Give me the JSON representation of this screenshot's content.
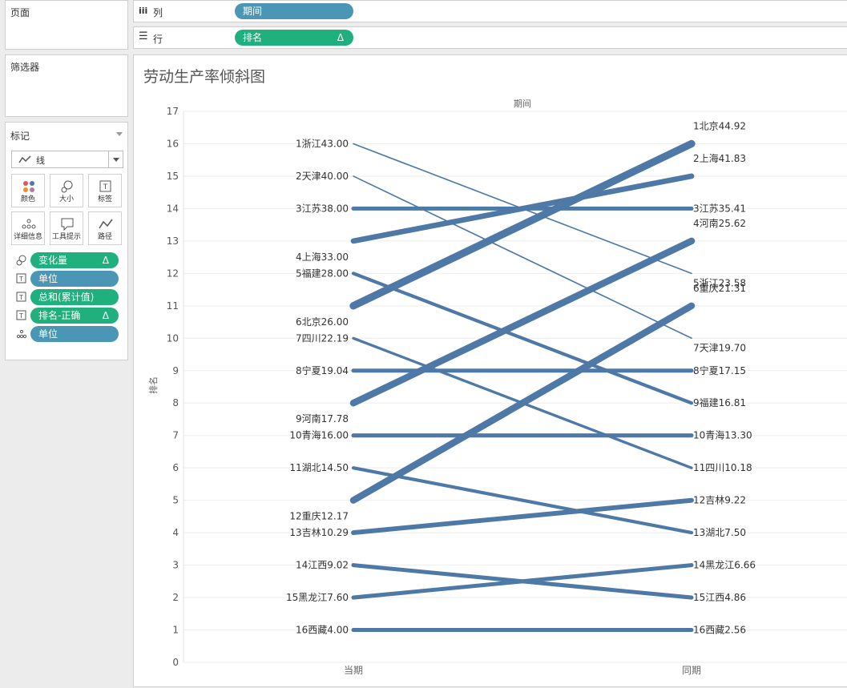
{
  "left_panel": {
    "pages_title": "页面",
    "filters_title": "筛选器",
    "marks_title": "标记",
    "mark_type": "线",
    "buttons": [
      {
        "label": "颜色",
        "icon": "color-icon"
      },
      {
        "label": "大小",
        "icon": "size-icon"
      },
      {
        "label": "标签",
        "icon": "label-icon"
      },
      {
        "label": "详细信息",
        "icon": "detail-icon"
      },
      {
        "label": "工具提示",
        "icon": "tooltip-icon"
      },
      {
        "label": "路径",
        "icon": "path-icon"
      }
    ],
    "mark_pills": [
      {
        "label": "变化量",
        "color": "green",
        "delta": "Δ",
        "icon": "size-icon"
      },
      {
        "label": "单位",
        "color": "blue",
        "delta": "",
        "icon": "text-icon"
      },
      {
        "label": "总和(累计值)",
        "color": "green",
        "delta": "",
        "icon": "text-icon"
      },
      {
        "label": "排名-正确",
        "color": "green",
        "delta": "Δ",
        "icon": "text-icon"
      },
      {
        "label": "单位",
        "color": "blue",
        "delta": "",
        "icon": "detail-icon"
      }
    ]
  },
  "shelves": {
    "columns": {
      "icon_text": "iii",
      "label": "列",
      "pill": "期间",
      "pill_delta": ""
    },
    "rows": {
      "icon_text": "☰",
      "label": "行",
      "pill": "排名",
      "pill_delta": "Δ"
    }
  },
  "colors": {
    "line": "#4e79a7",
    "green_pill": "#1fb07e",
    "blue_pill": "#4b96b4"
  },
  "view": {
    "title": "劳动生产率倾斜图"
  },
  "chart_data": {
    "type": "line",
    "title": "劳动生产率倾斜图",
    "top_header": "期间",
    "ylabel": "排名",
    "categories": [
      "当期",
      "同期"
    ],
    "yticks": [
      "0",
      "1",
      "2",
      "3",
      "4",
      "5",
      "6",
      "7",
      "8",
      "9",
      "10",
      "11",
      "12",
      "13",
      "14",
      "15",
      "16",
      "17"
    ],
    "ylim": [
      0,
      17
    ],
    "grid": true,
    "series": [
      {
        "left_label": "1浙江43.00",
        "right_label": "5浙江23.58",
        "values": [
          16,
          12
        ],
        "width_level": 1
      },
      {
        "left_label": "2天津40.00",
        "right_label": "7天津19.70",
        "values": [
          15,
          10
        ],
        "width_level": 1
      },
      {
        "left_label": "3江苏38.00",
        "right_label": "3江苏35.41",
        "values": [
          14,
          14
        ],
        "width_level": 5
      },
      {
        "left_label": "4上海33.00",
        "right_label": "2上海41.83",
        "values": [
          13,
          15
        ],
        "width_level": 7
      },
      {
        "left_label": "5福建28.00",
        "right_label": "9福建16.81",
        "values": [
          12,
          8
        ],
        "width_level": 4
      },
      {
        "left_label": "6北京26.00",
        "right_label": "1北京44.92",
        "values": [
          11,
          16
        ],
        "width_level": 10
      },
      {
        "left_label": "7四川22.19",
        "right_label": "11四川10.18",
        "values": [
          10,
          6
        ],
        "width_level": 3
      },
      {
        "left_label": "8宁夏19.04",
        "right_label": "8宁夏17.15",
        "values": [
          9,
          9
        ],
        "width_level": 5
      },
      {
        "left_label": "9河南17.78",
        "right_label": "4河南25.62",
        "values": [
          8,
          13
        ],
        "width_level": 9
      },
      {
        "left_label": "10青海16.00",
        "right_label": "10青海13.30",
        "values": [
          7,
          7
        ],
        "width_level": 5
      },
      {
        "left_label": "11湖北14.50",
        "right_label": "13湖北7.50",
        "values": [
          6,
          4
        ],
        "width_level": 4
      },
      {
        "left_label": "12重庆12.17",
        "right_label": "6重庆21.31",
        "values": [
          5,
          11
        ],
        "width_level": 9
      },
      {
        "left_label": "13吉林10.29",
        "right_label": "12吉林9.22",
        "values": [
          4,
          5
        ],
        "width_level": 6
      },
      {
        "left_label": "14江西9.02",
        "right_label": "15江西4.86",
        "values": [
          3,
          2
        ],
        "width_level": 5
      },
      {
        "left_label": "15黑龙江7.60",
        "right_label": "14黑龙江6.66",
        "values": [
          2,
          3
        ],
        "width_level": 5
      },
      {
        "left_label": "16西藏4.00",
        "right_label": "16西藏2.56",
        "values": [
          1,
          1
        ],
        "width_level": 5
      }
    ]
  }
}
